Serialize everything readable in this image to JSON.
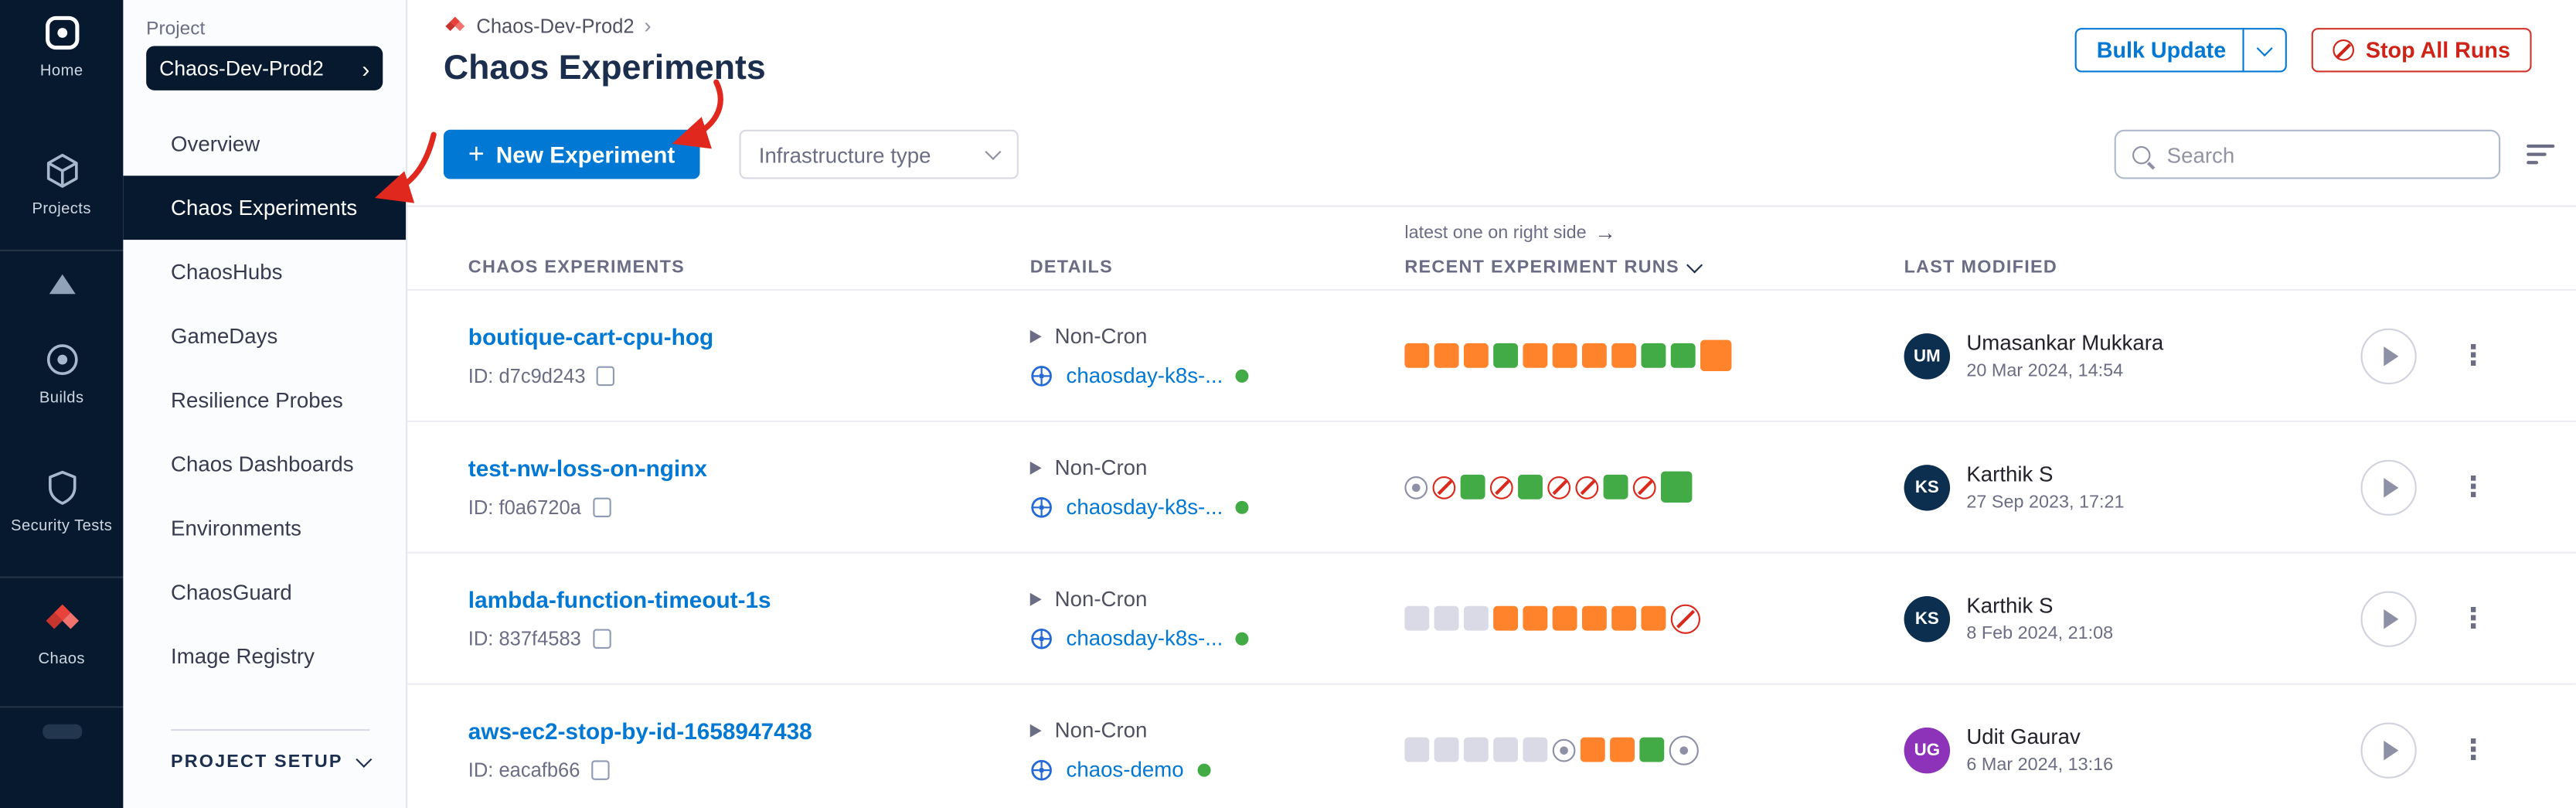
{
  "icons": {
    "plus": "+",
    "kebab": "⋮",
    "arrow_right": "→",
    "chevron_right": "›"
  },
  "colors": {
    "primary_blue": "#0278d5",
    "nav_navy": "#06192e",
    "run_orange": "#ff832b",
    "run_green": "#42ab45",
    "run_gray": "#d9dae5",
    "stop_red": "#da291d",
    "annotation_red": "#e0281e"
  },
  "nav_rail": {
    "items": [
      {
        "label": "Home"
      },
      {
        "label": "Projects"
      },
      {
        "label": "Builds"
      },
      {
        "label": "Security Tests"
      },
      {
        "label": "Chaos"
      }
    ]
  },
  "sidebar": {
    "section_label": "Project",
    "project_name": "Chaos-Dev-Prod2",
    "selected_index": 1,
    "items": [
      "Overview",
      "Chaos Experiments",
      "ChaosHubs",
      "GameDays",
      "Resilience Probes",
      "Chaos Dashboards",
      "Environments",
      "ChaosGuard",
      "Image Registry"
    ],
    "footer_label": "PROJECT SETUP"
  },
  "header": {
    "breadcrumb_project": "Chaos-Dev-Prod2",
    "title": "Chaos Experiments",
    "bulk_update_label": "Bulk Update",
    "stop_all_label": "Stop All Runs"
  },
  "toolbar": {
    "new_experiment_label": "New Experiment",
    "infrastructure_type_label": "Infrastructure type",
    "search_placeholder": "Search"
  },
  "table": {
    "hint": "latest one on right side",
    "columns": [
      "CHAOS EXPERIMENTS",
      "DETAILS",
      "RECENT EXPERIMENT RUNS",
      "LAST MODIFIED"
    ],
    "rows": [
      {
        "name": "boutique-cart-cpu-hog",
        "id_label": "ID: d7c9d243",
        "cron_label": "Non-Cron",
        "infra_label": "chaosday-k8s-...",
        "runs": [
          "orange",
          "orange",
          "orange",
          "green",
          "orange",
          "orange",
          "orange",
          "orange",
          "green",
          "green",
          "orange"
        ],
        "user": "Umasankar Mukkara",
        "initials": "UM",
        "avatar_color": "#0d2f4f",
        "date": "20 Mar 2024, 14:54"
      },
      {
        "name": "test-nw-loss-on-nginx",
        "id_label": "ID: f0a6720a",
        "cron_label": "Non-Cron",
        "infra_label": "chaosday-k8s-...",
        "runs": [
          "dot",
          "stopped",
          "green",
          "stopped",
          "green",
          "stopped",
          "stopped",
          "green",
          "stopped",
          "green"
        ],
        "user": "Karthik S",
        "initials": "KS",
        "avatar_color": "#0d2f4f",
        "date": "27 Sep 2023, 17:21"
      },
      {
        "name": "lambda-function-timeout-1s",
        "id_label": "ID: 837f4583",
        "cron_label": "Non-Cron",
        "infra_label": "chaosday-k8s-...",
        "runs": [
          "gray",
          "gray",
          "gray",
          "orange",
          "orange",
          "orange",
          "orange",
          "orange",
          "orange",
          "stopped"
        ],
        "user": "Karthik S",
        "initials": "KS",
        "avatar_color": "#0d2f4f",
        "date": "8 Feb 2024, 21:08"
      },
      {
        "name": "aws-ec2-stop-by-id-1658947438",
        "id_label": "ID: eacafb66",
        "cron_label": "Non-Cron",
        "infra_label": "chaos-demo",
        "runs": [
          "gray",
          "gray",
          "gray",
          "gray",
          "gray",
          "dot",
          "orange",
          "orange",
          "green",
          "dot"
        ],
        "user": "Udit Gaurav",
        "initials": "UG",
        "avatar_color": "#8d33ba",
        "date": "6 Mar 2024, 13:16"
      }
    ]
  }
}
